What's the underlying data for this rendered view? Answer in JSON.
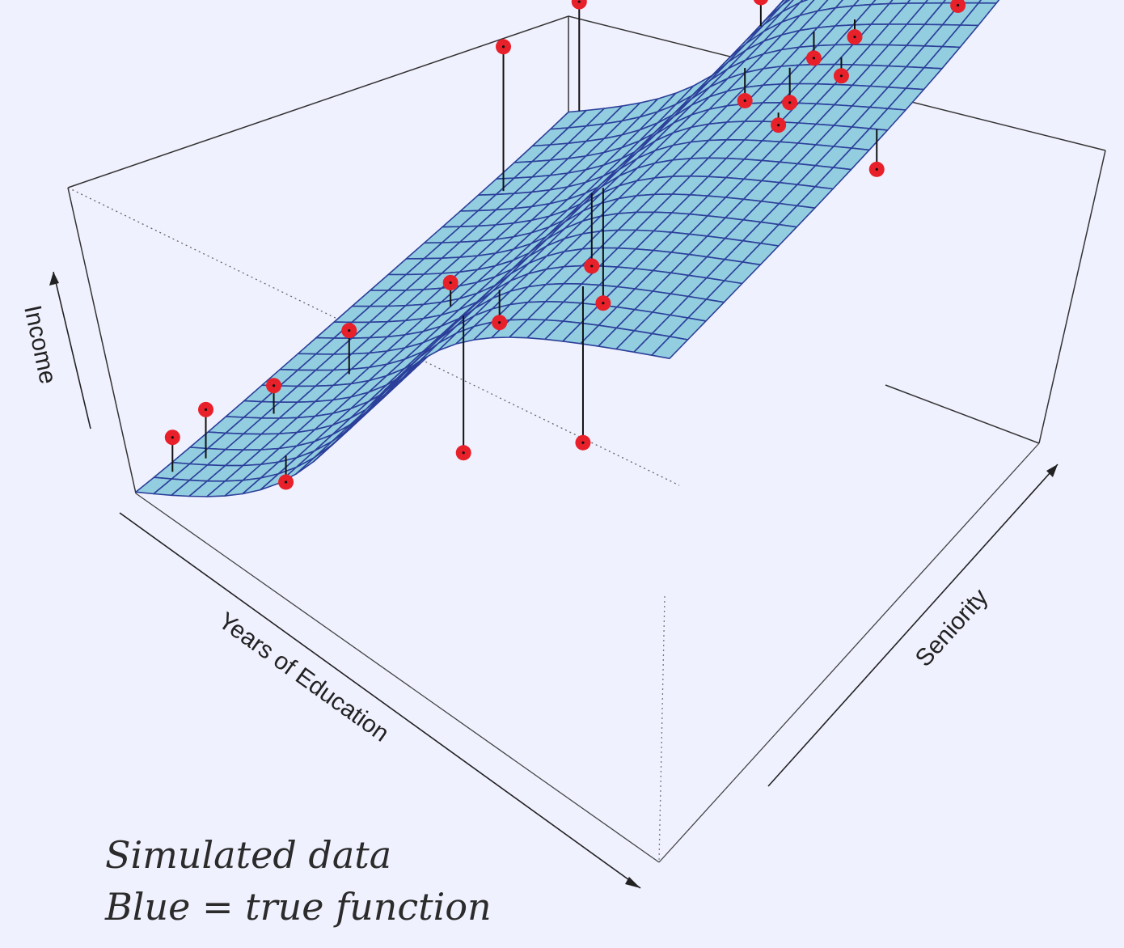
{
  "chart_data": {
    "type": "surface3d",
    "title": "",
    "xlabel": "Years of Education",
    "ylabel": "Seniority",
    "zlabel": "Income",
    "grid": true,
    "surface_color": "#92cde0",
    "mesh_color": "#2c3f9a",
    "point_color": "#e8202a",
    "x_range": [
      0,
      1
    ],
    "y_range": [
      0,
      1
    ],
    "z_range": [
      0,
      1
    ],
    "surface": {
      "nx": 30,
      "ny": 24,
      "description_function": "sigmoid_in_education_plus_seniority"
    },
    "points": [
      {
        "x": 0.05,
        "y": 0.1,
        "z": 0.24,
        "fz": 0.1
      },
      {
        "x": 0.02,
        "y": 0.06,
        "z": 0.18,
        "fz": 0.12
      },
      {
        "x": 0.08,
        "y": 0.22,
        "z": 0.21,
        "fz": 0.14
      },
      {
        "x": 0.2,
        "y": 0.1,
        "z": 0.05,
        "fz": 0.12
      },
      {
        "x": 0.14,
        "y": 0.32,
        "z": 0.3,
        "fz": 0.18
      },
      {
        "x": 0.2,
        "y": 0.48,
        "z": 0.3,
        "fz": 0.26
      },
      {
        "x": 0.34,
        "y": 0.42,
        "z": 0.25,
        "fz": 0.24
      },
      {
        "x": 0.5,
        "y": 0.14,
        "z": 0.18,
        "fz": 0.32
      },
      {
        "x": 0.48,
        "y": 0.46,
        "z": 0.4,
        "fz": 0.36
      },
      {
        "x": 0.55,
        "y": 0.4,
        "z": 0.36,
        "fz": 0.38
      },
      {
        "x": 0.74,
        "y": 0.12,
        "z": 0.3,
        "fz": 0.32
      },
      {
        "x": 0.62,
        "y": 0.64,
        "z": 0.72,
        "fz": 0.6
      },
      {
        "x": 0.52,
        "y": 0.8,
        "z": 0.86,
        "fz": 0.74
      },
      {
        "x": 0.78,
        "y": 0.52,
        "z": 0.8,
        "fz": 0.74
      },
      {
        "x": 0.7,
        "y": 0.7,
        "z": 0.78,
        "fz": 0.72
      },
      {
        "x": 0.76,
        "y": 0.72,
        "z": 0.82,
        "fz": 0.8
      },
      {
        "x": 0.72,
        "y": 0.62,
        "z": 0.74,
        "fz": 0.7
      },
      {
        "x": 0.8,
        "y": 0.64,
        "z": 0.8,
        "fz": 0.78
      },
      {
        "x": 0.8,
        "y": 0.82,
        "z": 0.96,
        "fz": 0.86
      },
      {
        "x": 0.98,
        "y": 0.5,
        "z": 0.7,
        "fz": 0.86
      },
      {
        "x": 0.92,
        "y": 0.76,
        "z": 0.86,
        "fz": 0.98
      },
      {
        "x": 0.94,
        "y": 0.86,
        "z": 0.98,
        "fz": 0.92
      },
      {
        "x": 0.82,
        "y": 0.94,
        "z": 0.96,
        "fz": 0.96
      },
      {
        "x": 0.88,
        "y": 0.98,
        "z": 0.92,
        "fz": 0.98
      },
      {
        "x": 0.8,
        "y": 1.0,
        "z": 1.0,
        "fz": 0.98
      },
      {
        "x": 0.98,
        "y": 0.8,
        "z": 1.0,
        "fz": 0.98
      },
      {
        "x": 1.0,
        "y": 1.0,
        "z": 1.0,
        "fz": 1.0
      },
      {
        "x": 0.04,
        "y": 0.8,
        "z": 0.74,
        "fz": 0.52
      },
      {
        "x": 0.02,
        "y": 1.0,
        "z": 0.7,
        "fz": 0.7
      }
    ]
  },
  "caption": {
    "line1": "Simulated data",
    "line2": "Blue = true function"
  }
}
